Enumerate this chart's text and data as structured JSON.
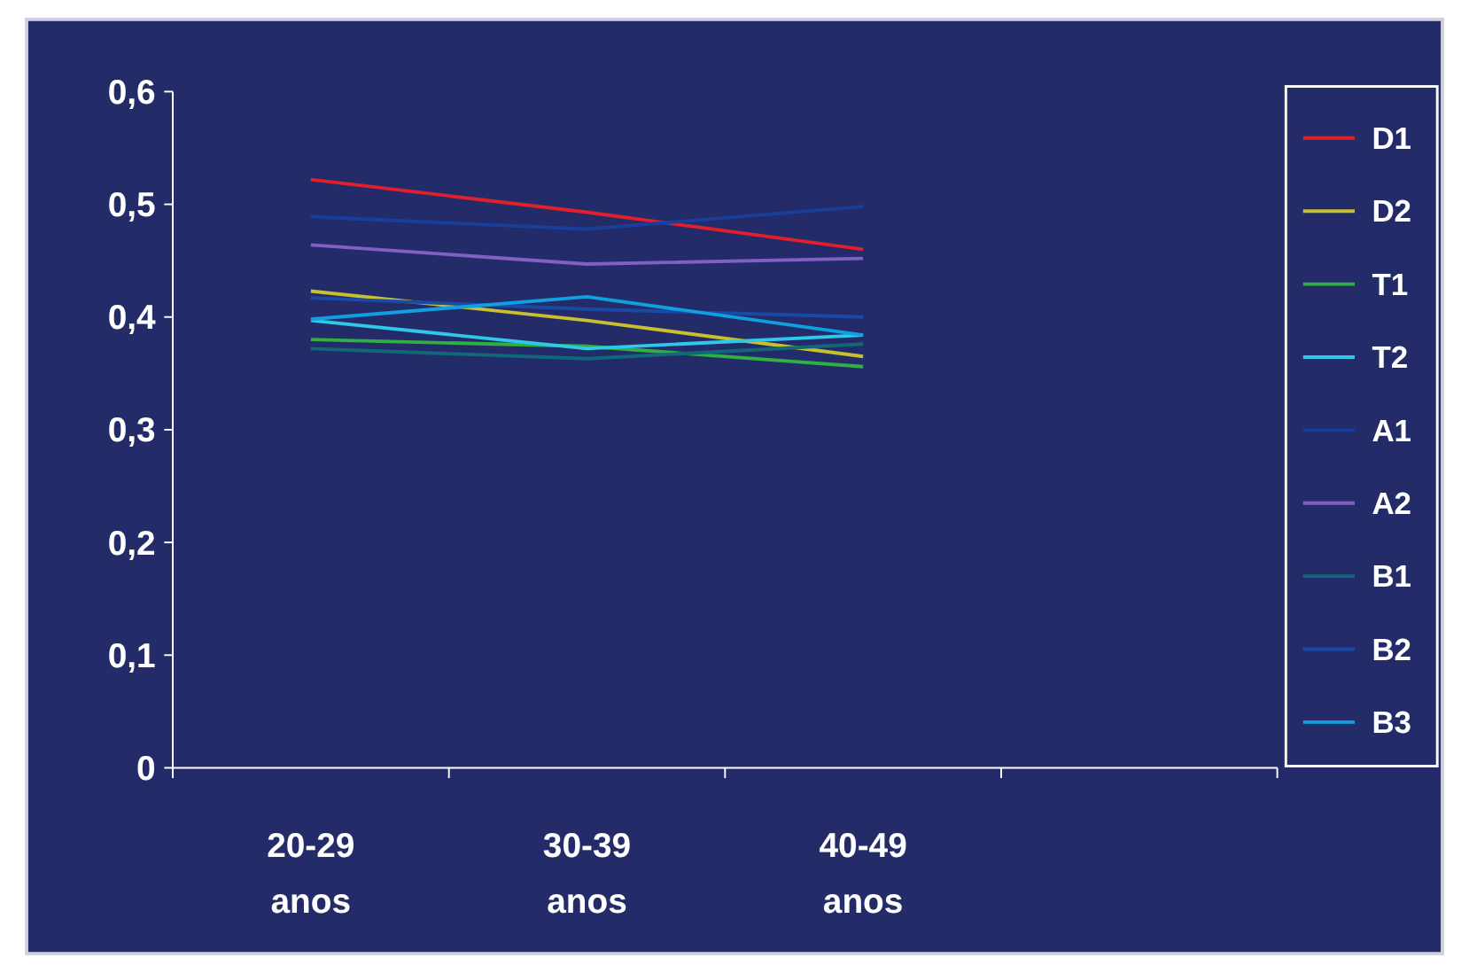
{
  "chart_data": {
    "type": "line",
    "categories": [
      "20-29\nanos",
      "30-39\nanos",
      "40-49\nanos",
      null
    ],
    "series": [
      {
        "name": "D1",
        "color": "#e0202a",
        "values": [
          0.522,
          0.493,
          0.46,
          null
        ]
      },
      {
        "name": "D2",
        "color": "#c8c030",
        "values": [
          0.423,
          0.397,
          0.365,
          null
        ]
      },
      {
        "name": "T1",
        "color": "#30b040",
        "values": [
          0.38,
          0.374,
          0.356,
          null
        ]
      },
      {
        "name": "T2",
        "color": "#30c8e8",
        "values": [
          0.397,
          0.372,
          0.384,
          null
        ]
      },
      {
        "name": "A1",
        "color": "#1a3f9a",
        "values": [
          0.489,
          0.478,
          0.498,
          null
        ]
      },
      {
        "name": "A2",
        "color": "#8060c0",
        "values": [
          0.464,
          0.447,
          0.452,
          null
        ]
      },
      {
        "name": "B1",
        "color": "#106878",
        "values": [
          0.372,
          0.363,
          0.376,
          null
        ]
      },
      {
        "name": "B2",
        "color": "#1a4aa8",
        "values": [
          0.417,
          0.407,
          0.4,
          null
        ]
      },
      {
        "name": "B3",
        "color": "#10a0e0",
        "values": [
          0.398,
          0.418,
          0.384,
          null
        ]
      }
    ],
    "ylim": [
      0,
      0.6
    ],
    "yticks": [
      {
        "value": 0,
        "label": "0"
      },
      {
        "value": 0.1,
        "label": "0,1"
      },
      {
        "value": 0.2,
        "label": "0,2"
      },
      {
        "value": 0.3,
        "label": "0,3"
      },
      {
        "value": 0.4,
        "label": "0,4"
      },
      {
        "value": 0.5,
        "label": "0,5"
      },
      {
        "value": 0.6,
        "label": "0,6"
      }
    ],
    "legend": "right",
    "marker": "none",
    "line_style": "solid",
    "grid": false
  }
}
